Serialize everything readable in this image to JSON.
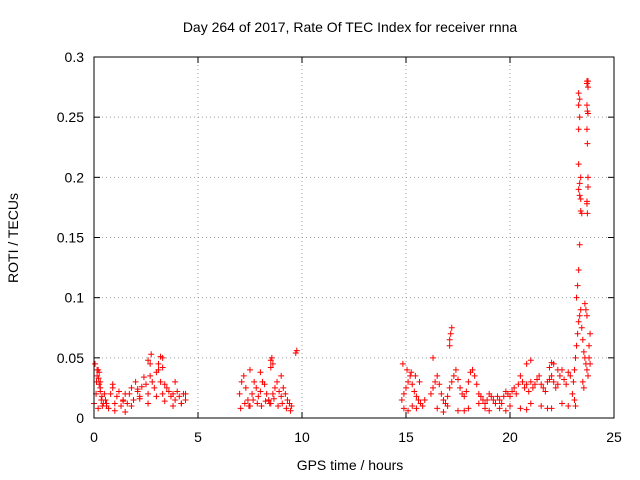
{
  "chart_data": {
    "type": "scatter",
    "title": "Day 264 of 2017, Rate Of TEC Index for receiver rnna",
    "xlabel": "GPS time / hours",
    "ylabel": "ROTI / TECUs",
    "xlim": [
      0,
      25
    ],
    "ylim": [
      0,
      0.3
    ],
    "x_ticks": [
      0,
      5,
      10,
      15,
      20,
      25
    ],
    "x_tick_labels": [
      "0",
      "5",
      "10",
      "15",
      "20",
      "25"
    ],
    "y_ticks": [
      0,
      0.05,
      0.1,
      0.15,
      0.2,
      0.25,
      0.3
    ],
    "y_tick_labels": [
      "0",
      "0.05",
      "0.1",
      "0.15",
      "0.2",
      "0.25",
      "0.3"
    ],
    "grid": true,
    "marker": "+",
    "color": "#ff0000",
    "series": [
      {
        "x": [
          0.0,
          0.1,
          0.15,
          0.2,
          0.25,
          0.3,
          0.35,
          0.4,
          0.05,
          0.12,
          0.22,
          0.3,
          0.38,
          0.45,
          0.5,
          0.55,
          0.6,
          0.7,
          0.8,
          0.9,
          1.0,
          1.1,
          1.2,
          1.3,
          1.4,
          1.5,
          1.6,
          1.7,
          1.8,
          1.9,
          2.0,
          2.1,
          2.2,
          2.3,
          2.4,
          2.5,
          2.6,
          2.7,
          2.8,
          2.9,
          3.0,
          3.1,
          3.2,
          3.3,
          3.4,
          3.5,
          3.6,
          3.7,
          3.8,
          3.9,
          4.0,
          4.1,
          4.2,
          4.3,
          4.4,
          0.2,
          0.6,
          1.0,
          1.4,
          1.8,
          2.2,
          2.6,
          3.0,
          3.4,
          3.8,
          4.2,
          0.3,
          0.9,
          1.5,
          2.1,
          2.7,
          3.3,
          3.9,
          4.4,
          2.6,
          2.75,
          3.1,
          3.3,
          3.2,
          0.15,
          0.25
        ],
        "y": [
          0.012,
          0.02,
          0.035,
          0.04,
          0.028,
          0.022,
          0.015,
          0.01,
          0.045,
          0.03,
          0.033,
          0.025,
          0.018,
          0.012,
          0.02,
          0.015,
          0.01,
          0.008,
          0.02,
          0.025,
          0.012,
          0.018,
          0.022,
          0.01,
          0.015,
          0.005,
          0.012,
          0.02,
          0.025,
          0.015,
          0.03,
          0.022,
          0.018,
          0.026,
          0.034,
          0.028,
          0.02,
          0.035,
          0.03,
          0.025,
          0.038,
          0.04,
          0.03,
          0.02,
          0.028,
          0.025,
          0.022,
          0.018,
          0.02,
          0.015,
          0.022,
          0.018,
          0.012,
          0.02,
          0.015,
          0.008,
          0.012,
          0.006,
          0.014,
          0.01,
          0.016,
          0.012,
          0.018,
          0.014,
          0.01,
          0.012,
          0.03,
          0.028,
          0.02,
          0.024,
          0.045,
          0.05,
          0.03,
          0.02,
          0.048,
          0.053,
          0.045,
          0.042,
          0.051,
          0.04,
          0.038
        ]
      },
      {
        "x": [
          7.0,
          7.1,
          7.2,
          7.3,
          7.4,
          7.5,
          7.6,
          7.7,
          7.8,
          7.9,
          8.0,
          8.1,
          8.2,
          8.3,
          8.4,
          8.5,
          8.6,
          8.7,
          8.8,
          8.9,
          9.0,
          9.1,
          9.2,
          9.3,
          9.4,
          9.5,
          7.05,
          7.25,
          7.45,
          7.65,
          7.85,
          8.05,
          8.25,
          8.45,
          8.65,
          8.85,
          9.05,
          9.25,
          9.45,
          7.5,
          8.0,
          8.5,
          9.0,
          8.5,
          8.6,
          8.55,
          9.7,
          9.75
        ],
        "y": [
          0.02,
          0.03,
          0.035,
          0.025,
          0.015,
          0.01,
          0.02,
          0.03,
          0.025,
          0.018,
          0.022,
          0.03,
          0.028,
          0.02,
          0.015,
          0.012,
          0.02,
          0.025,
          0.03,
          0.022,
          0.018,
          0.025,
          0.02,
          0.015,
          0.012,
          0.01,
          0.008,
          0.012,
          0.01,
          0.015,
          0.012,
          0.01,
          0.014,
          0.012,
          0.016,
          0.01,
          0.012,
          0.008,
          0.006,
          0.04,
          0.038,
          0.042,
          0.035,
          0.048,
          0.045,
          0.05,
          0.054,
          0.056
        ]
      },
      {
        "x": [
          14.8,
          14.9,
          15.0,
          15.1,
          15.2,
          15.3,
          15.4,
          15.5,
          15.6,
          15.7,
          15.8,
          15.9,
          14.85,
          15.05,
          15.25,
          15.45,
          15.65,
          14.9,
          15.1,
          15.3,
          15.5
        ],
        "y": [
          0.015,
          0.02,
          0.025,
          0.03,
          0.035,
          0.028,
          0.022,
          0.018,
          0.015,
          0.012,
          0.01,
          0.015,
          0.045,
          0.04,
          0.038,
          0.035,
          0.03,
          0.008,
          0.006,
          0.01,
          0.008
        ]
      },
      {
        "x": [
          16.2,
          16.3,
          16.4,
          16.5,
          16.6,
          16.7,
          16.8,
          16.9,
          17.0,
          17.1,
          17.2,
          17.3,
          17.4,
          17.5,
          17.6,
          17.7,
          17.8,
          17.9,
          18.0,
          18.1,
          18.2,
          18.3,
          18.4,
          18.5,
          18.6,
          18.7,
          18.8,
          18.9,
          19.0,
          19.1,
          19.2,
          19.3,
          19.4,
          19.5,
          19.6,
          19.7,
          19.8,
          19.9,
          20.0,
          20.1,
          20.2,
          20.3,
          20.4,
          20.5,
          20.6,
          20.7,
          20.8,
          20.9,
          21.0,
          21.1,
          21.2,
          21.3,
          21.4,
          21.5,
          21.6,
          21.7,
          21.8,
          21.9,
          22.0,
          22.1,
          22.2,
          22.3,
          22.4,
          22.5,
          22.6,
          22.7,
          22.8,
          22.9,
          16.5,
          17.0,
          17.5,
          18.0,
          18.5,
          19.0,
          19.5,
          20.0,
          20.5,
          21.0,
          21.5,
          22.0,
          22.5,
          17.1,
          17.15,
          17.2,
          17.1,
          16.3,
          20.8,
          21.0,
          21.9,
          22.1,
          22.3,
          22.0,
          16.8,
          17.8,
          18.8,
          19.8,
          20.8,
          21.8,
          22.8
        ],
        "y": [
          0.02,
          0.025,
          0.03,
          0.035,
          0.028,
          0.02,
          0.015,
          0.012,
          0.018,
          0.025,
          0.03,
          0.035,
          0.04,
          0.032,
          0.025,
          0.02,
          0.018,
          0.022,
          0.03,
          0.038,
          0.04,
          0.035,
          0.028,
          0.02,
          0.018,
          0.015,
          0.012,
          0.015,
          0.02,
          0.018,
          0.015,
          0.012,
          0.018,
          0.015,
          0.012,
          0.018,
          0.022,
          0.02,
          0.018,
          0.022,
          0.025,
          0.02,
          0.028,
          0.035,
          0.03,
          0.025,
          0.028,
          0.022,
          0.03,
          0.025,
          0.028,
          0.032,
          0.035,
          0.028,
          0.025,
          0.022,
          0.03,
          0.032,
          0.035,
          0.03,
          0.025,
          0.028,
          0.035,
          0.04,
          0.032,
          0.028,
          0.038,
          0.035,
          0.008,
          0.01,
          0.006,
          0.008,
          0.012,
          0.006,
          0.008,
          0.01,
          0.008,
          0.012,
          0.01,
          0.008,
          0.012,
          0.065,
          0.07,
          0.075,
          0.06,
          0.05,
          0.045,
          0.048,
          0.042,
          0.045,
          0.04,
          0.046,
          0.005,
          0.006,
          0.008,
          0.006,
          0.007,
          0.008,
          0.01
        ]
      },
      {
        "x": [
          23.0,
          23.05,
          23.1,
          23.15,
          23.2,
          23.25,
          23.3,
          23.35,
          23.4,
          23.45,
          23.5,
          23.55,
          23.6,
          23.65,
          23.7,
          23.75,
          23.8,
          23.85,
          23.3,
          23.35,
          23.4,
          23.3,
          23.35,
          23.4,
          23.3,
          23.35,
          23.4,
          23.45,
          23.3,
          23.35,
          23.7,
          23.75,
          23.7,
          23.72,
          23.75,
          23.7,
          23.72,
          23.75,
          23.7,
          23.75,
          23.7,
          23.72,
          23.3,
          23.3,
          23.35,
          23.7,
          23.75,
          23.2,
          23.25,
          23.6,
          23.65,
          23.7,
          23.5,
          23.55,
          23.1,
          23.15,
          23.8,
          23.85
        ],
        "y": [
          0.02,
          0.03,
          0.04,
          0.05,
          0.06,
          0.07,
          0.08,
          0.085,
          0.09,
          0.075,
          0.065,
          0.055,
          0.05,
          0.045,
          0.04,
          0.035,
          0.06,
          0.07,
          0.123,
          0.144,
          0.182,
          0.19,
          0.195,
          0.2,
          0.211,
          0.185,
          0.172,
          0.17,
          0.24,
          0.25,
          0.28,
          0.275,
          0.26,
          0.255,
          0.253,
          0.24,
          0.228,
          0.192,
          0.178,
          0.2,
          0.18,
          0.17,
          0.27,
          0.26,
          0.265,
          0.278,
          0.28,
          0.1,
          0.11,
          0.095,
          0.09,
          0.085,
          0.03,
          0.025,
          0.015,
          0.01,
          0.05,
          0.045
        ]
      }
    ]
  }
}
